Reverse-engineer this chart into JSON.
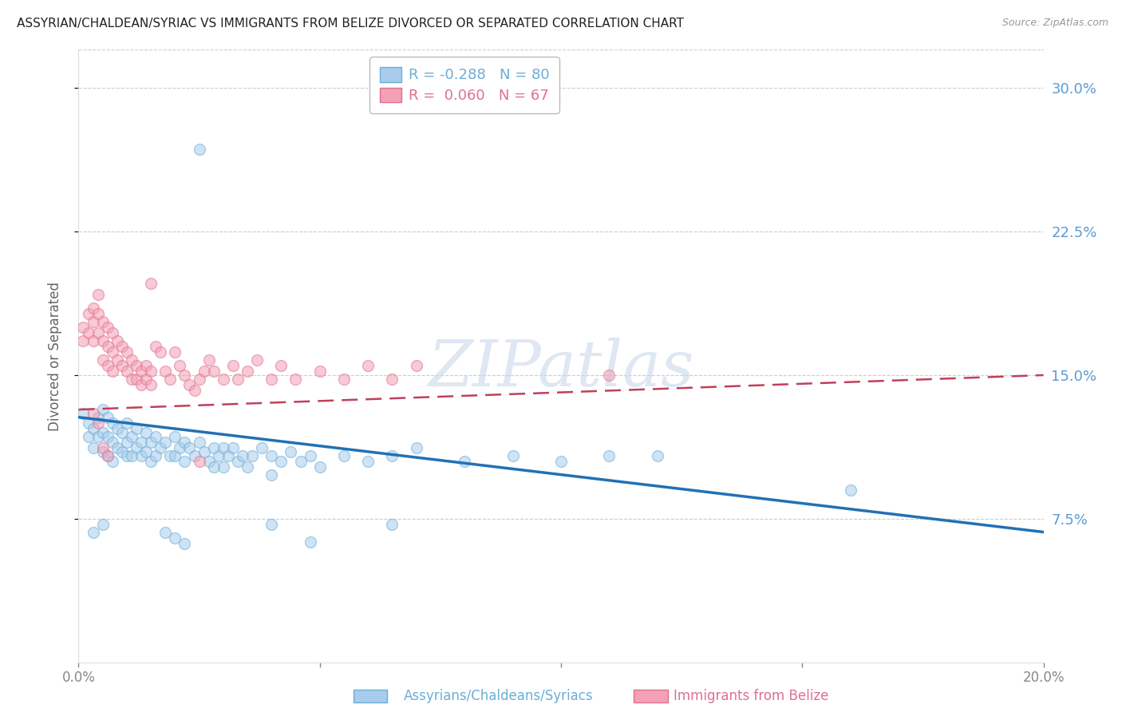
{
  "title": "ASSYRIAN/CHALDEAN/SYRIAC VS IMMIGRANTS FROM BELIZE DIVORCED OR SEPARATED CORRELATION CHART",
  "source": "Source: ZipAtlas.com",
  "ylabel": "Divorced or Separated",
  "ytick_labels": [
    "7.5%",
    "15.0%",
    "22.5%",
    "30.0%"
  ],
  "ytick_values": [
    0.075,
    0.15,
    0.225,
    0.3
  ],
  "xlim": [
    0.0,
    0.2
  ],
  "ylim": [
    0.0,
    0.32
  ],
  "legend_label1": "Assyrians/Chaldeans/Syriacs",
  "legend_label2": "Immigrants from Belize",
  "watermark": "ZIPatlas",
  "blue_scatter": [
    [
      0.001,
      0.13
    ],
    [
      0.002,
      0.125
    ],
    [
      0.002,
      0.118
    ],
    [
      0.003,
      0.122
    ],
    [
      0.003,
      0.112
    ],
    [
      0.004,
      0.128
    ],
    [
      0.004,
      0.118
    ],
    [
      0.005,
      0.132
    ],
    [
      0.005,
      0.12
    ],
    [
      0.005,
      0.11
    ],
    [
      0.006,
      0.128
    ],
    [
      0.006,
      0.118
    ],
    [
      0.006,
      0.108
    ],
    [
      0.007,
      0.125
    ],
    [
      0.007,
      0.115
    ],
    [
      0.007,
      0.105
    ],
    [
      0.008,
      0.122
    ],
    [
      0.008,
      0.112
    ],
    [
      0.009,
      0.12
    ],
    [
      0.009,
      0.11
    ],
    [
      0.01,
      0.125
    ],
    [
      0.01,
      0.115
    ],
    [
      0.01,
      0.108
    ],
    [
      0.011,
      0.118
    ],
    [
      0.011,
      0.108
    ],
    [
      0.012,
      0.122
    ],
    [
      0.012,
      0.112
    ],
    [
      0.013,
      0.115
    ],
    [
      0.013,
      0.108
    ],
    [
      0.014,
      0.12
    ],
    [
      0.014,
      0.11
    ],
    [
      0.015,
      0.115
    ],
    [
      0.015,
      0.105
    ],
    [
      0.016,
      0.118
    ],
    [
      0.016,
      0.108
    ],
    [
      0.017,
      0.112
    ],
    [
      0.018,
      0.115
    ],
    [
      0.019,
      0.108
    ],
    [
      0.02,
      0.118
    ],
    [
      0.02,
      0.108
    ],
    [
      0.021,
      0.112
    ],
    [
      0.022,
      0.115
    ],
    [
      0.022,
      0.105
    ],
    [
      0.023,
      0.112
    ],
    [
      0.024,
      0.108
    ],
    [
      0.025,
      0.115
    ],
    [
      0.026,
      0.11
    ],
    [
      0.027,
      0.105
    ],
    [
      0.028,
      0.112
    ],
    [
      0.028,
      0.102
    ],
    [
      0.029,
      0.108
    ],
    [
      0.03,
      0.112
    ],
    [
      0.03,
      0.102
    ],
    [
      0.031,
      0.108
    ],
    [
      0.032,
      0.112
    ],
    [
      0.033,
      0.105
    ],
    [
      0.034,
      0.108
    ],
    [
      0.035,
      0.102
    ],
    [
      0.036,
      0.108
    ],
    [
      0.038,
      0.112
    ],
    [
      0.04,
      0.108
    ],
    [
      0.04,
      0.098
    ],
    [
      0.042,
      0.105
    ],
    [
      0.044,
      0.11
    ],
    [
      0.046,
      0.105
    ],
    [
      0.048,
      0.108
    ],
    [
      0.05,
      0.102
    ],
    [
      0.055,
      0.108
    ],
    [
      0.06,
      0.105
    ],
    [
      0.065,
      0.108
    ],
    [
      0.07,
      0.112
    ],
    [
      0.08,
      0.105
    ],
    [
      0.09,
      0.108
    ],
    [
      0.1,
      0.105
    ],
    [
      0.11,
      0.108
    ],
    [
      0.12,
      0.108
    ],
    [
      0.025,
      0.268
    ],
    [
      0.018,
      0.068
    ],
    [
      0.02,
      0.065
    ],
    [
      0.022,
      0.062
    ],
    [
      0.04,
      0.072
    ],
    [
      0.16,
      0.09
    ],
    [
      0.065,
      0.072
    ],
    [
      0.048,
      0.063
    ],
    [
      0.003,
      0.068
    ],
    [
      0.005,
      0.072
    ]
  ],
  "pink_scatter": [
    [
      0.001,
      0.175
    ],
    [
      0.001,
      0.168
    ],
    [
      0.002,
      0.182
    ],
    [
      0.002,
      0.172
    ],
    [
      0.003,
      0.185
    ],
    [
      0.003,
      0.178
    ],
    [
      0.003,
      0.168
    ],
    [
      0.004,
      0.192
    ],
    [
      0.004,
      0.182
    ],
    [
      0.004,
      0.172
    ],
    [
      0.005,
      0.178
    ],
    [
      0.005,
      0.168
    ],
    [
      0.005,
      0.158
    ],
    [
      0.006,
      0.175
    ],
    [
      0.006,
      0.165
    ],
    [
      0.006,
      0.155
    ],
    [
      0.007,
      0.172
    ],
    [
      0.007,
      0.162
    ],
    [
      0.007,
      0.152
    ],
    [
      0.008,
      0.168
    ],
    [
      0.008,
      0.158
    ],
    [
      0.009,
      0.165
    ],
    [
      0.009,
      0.155
    ],
    [
      0.01,
      0.162
    ],
    [
      0.01,
      0.152
    ],
    [
      0.011,
      0.158
    ],
    [
      0.011,
      0.148
    ],
    [
      0.012,
      0.155
    ],
    [
      0.012,
      0.148
    ],
    [
      0.013,
      0.152
    ],
    [
      0.013,
      0.145
    ],
    [
      0.014,
      0.155
    ],
    [
      0.014,
      0.148
    ],
    [
      0.015,
      0.152
    ],
    [
      0.015,
      0.145
    ],
    [
      0.016,
      0.165
    ],
    [
      0.017,
      0.162
    ],
    [
      0.018,
      0.152
    ],
    [
      0.019,
      0.148
    ],
    [
      0.02,
      0.162
    ],
    [
      0.021,
      0.155
    ],
    [
      0.022,
      0.15
    ],
    [
      0.023,
      0.145
    ],
    [
      0.024,
      0.142
    ],
    [
      0.025,
      0.148
    ],
    [
      0.026,
      0.152
    ],
    [
      0.027,
      0.158
    ],
    [
      0.028,
      0.152
    ],
    [
      0.03,
      0.148
    ],
    [
      0.032,
      0.155
    ],
    [
      0.033,
      0.148
    ],
    [
      0.035,
      0.152
    ],
    [
      0.037,
      0.158
    ],
    [
      0.04,
      0.148
    ],
    [
      0.042,
      0.155
    ],
    [
      0.045,
      0.148
    ],
    [
      0.05,
      0.152
    ],
    [
      0.055,
      0.148
    ],
    [
      0.06,
      0.155
    ],
    [
      0.065,
      0.148
    ],
    [
      0.07,
      0.155
    ],
    [
      0.015,
      0.198
    ],
    [
      0.005,
      0.112
    ],
    [
      0.006,
      0.108
    ],
    [
      0.025,
      0.105
    ],
    [
      0.11,
      0.15
    ],
    [
      0.003,
      0.13
    ],
    [
      0.004,
      0.125
    ]
  ],
  "blue_line_x": [
    0.0,
    0.2
  ],
  "blue_line_y": [
    0.128,
    0.068
  ],
  "pink_line_x": [
    0.0,
    0.2
  ],
  "pink_line_y": [
    0.132,
    0.15
  ],
  "scatter_size": 100,
  "scatter_alpha": 0.55,
  "scatter_linewidth": 1.0,
  "blue_color": "#a8ccee",
  "blue_edge_color": "#6baed6",
  "pink_color": "#f4a0b5",
  "pink_edge_color": "#e07090",
  "blue_line_color": "#2171b5",
  "pink_line_color": "#c0405a",
  "grid_color": "#cccccc",
  "background_color": "#ffffff",
  "right_axis_tick_color": "#5b9bd5"
}
